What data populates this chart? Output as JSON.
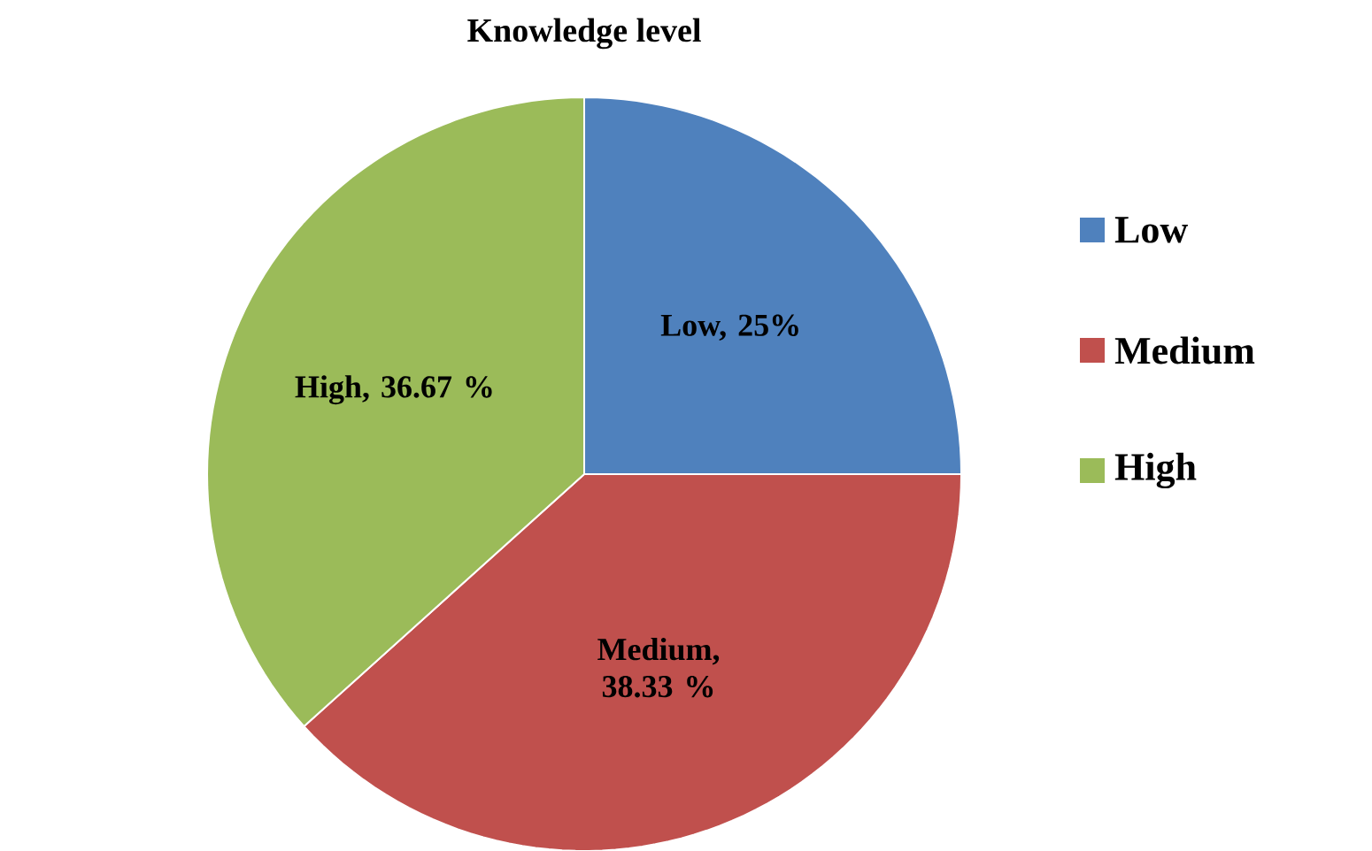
{
  "chart_data": {
    "type": "pie",
    "title": "Knowledge level",
    "categories": [
      "Low",
      "Medium",
      "High"
    ],
    "values": [
      25,
      38.33,
      36.67
    ],
    "colors": [
      "#4f81bd",
      "#c0504d",
      "#9bbb59"
    ],
    "value_labels": [
      "Low, 25%",
      "Medium, 38.33 %",
      "High, 36.67 %"
    ],
    "legend": "right"
  }
}
